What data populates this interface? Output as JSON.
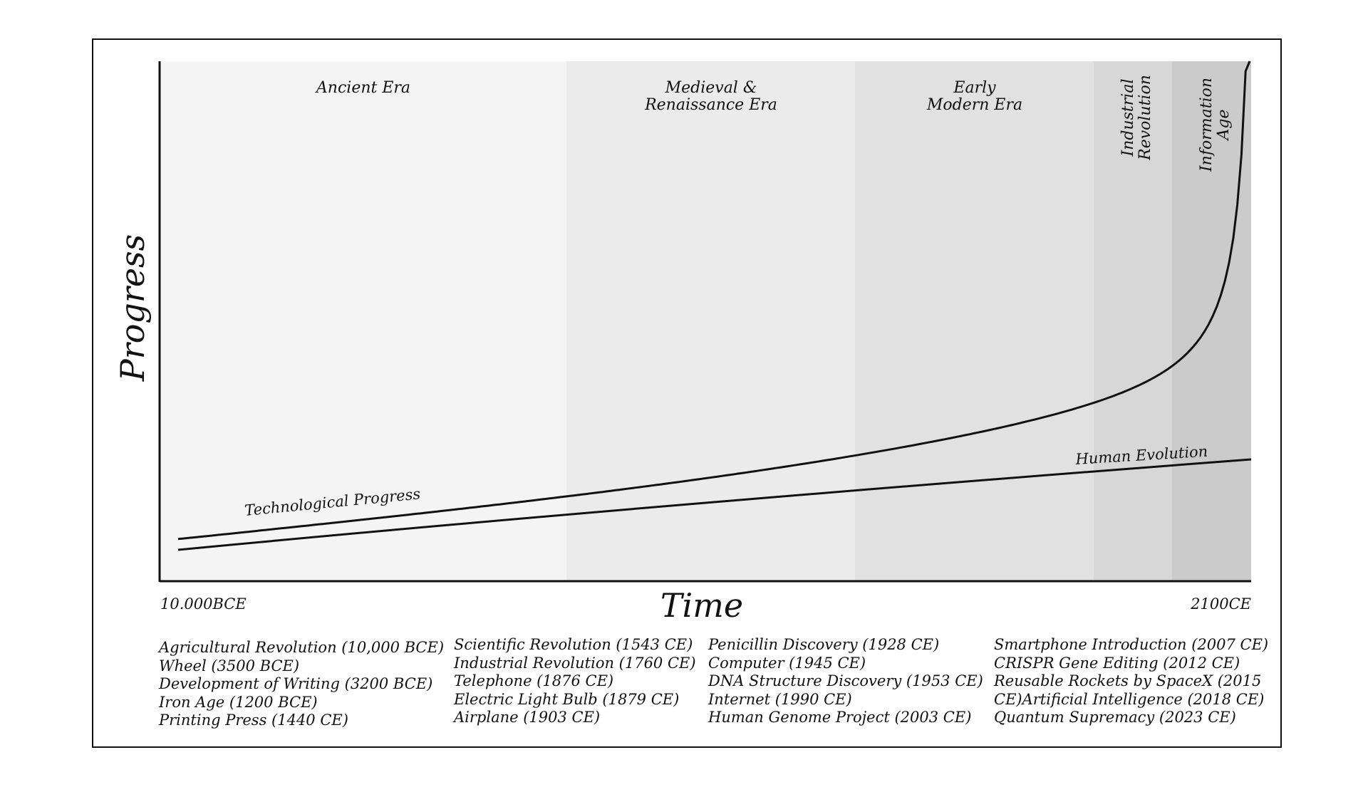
{
  "chart_data": {
    "type": "line",
    "xlabel": "Time",
    "ylabel": "Progress",
    "x_range_labels": [
      "10.000BCE",
      "2100CE"
    ],
    "eras": [
      {
        "name": "Ancient Era",
        "lines": [
          "Ancient Era"
        ],
        "shade": "#f4f4f4"
      },
      {
        "name": "Medieval & Renaissance Era",
        "lines": [
          "Medieval &",
          "Renaissance Era"
        ],
        "shade": "#ebebeb"
      },
      {
        "name": "Early Modern Era",
        "lines": [
          "Early",
          "Modern Era"
        ],
        "shade": "#e1e1e1"
      },
      {
        "name": "Industrial Revolution",
        "lines": [
          "Industrial",
          "Revolution"
        ],
        "shade": "#d7d7d7"
      },
      {
        "name": "Information Age",
        "lines": [
          "Information",
          "Age"
        ],
        "shade": "#cbcbcb"
      }
    ],
    "series": [
      {
        "name": "Technological Progress",
        "shape": "exponential"
      },
      {
        "name": "Human Evolution",
        "shape": "linear"
      }
    ],
    "milestone_columns": [
      [
        "Agricultural Revolution (10,000 BCE)",
        "Wheel (3500 BCE)",
        "Development of Writing (3200 BCE)",
        "Iron Age (1200 BCE)",
        "Printing Press (1440 CE)"
      ],
      [
        "Scientific Revolution (1543 CE)",
        "Industrial Revolution (1760 CE)",
        "Telephone (1876 CE)",
        "Electric Light Bulb (1879 CE)",
        "Airplane (1903 CE)"
      ],
      [
        "Penicillin Discovery (1928 CE)",
        "Computer (1945 CE)",
        "DNA Structure Discovery (1953 CE)",
        "Internet (1990 CE)",
        "Human Genome Project (2003 CE)"
      ],
      [
        "Smartphone Introduction (2007 CE)",
        "CRISPR Gene Editing (2012 CE)",
        "Reusable Rockets by SpaceX (2015",
        "CE)Artificial Intelligence (2018 CE)",
        "Quantum Supremacy (2023 CE)"
      ]
    ]
  }
}
